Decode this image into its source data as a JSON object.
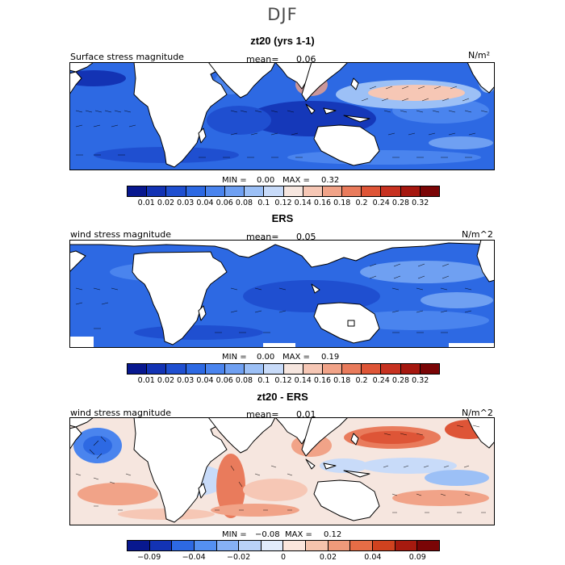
{
  "title": "DJF",
  "colors": {
    "land": "#ffffff",
    "coast": "#000000",
    "seq_scale": [
      "#08188f",
      "#1333b4",
      "#1f4fd0",
      "#2d69e3",
      "#4a84ee",
      "#6fa0f2",
      "#9cc0f6",
      "#c8dbf9",
      "#f6e6df",
      "#f6c7b5",
      "#f1a388",
      "#e97b5c",
      "#de5537",
      "#c73221",
      "#a5170f",
      "#7a0506"
    ],
    "div_scale": [
      "#08188f",
      "#1333b4",
      "#2d69e3",
      "#5490f1",
      "#86b1f5",
      "#b9d2f8",
      "#e1ecfb",
      "#fbe6dc",
      "#f5c4ad",
      "#ef9a7a",
      "#e66d46",
      "#d0421f",
      "#a71a0f",
      "#7a0506"
    ]
  },
  "panels": [
    {
      "title": "zt20 (yrs 1-1)",
      "field_label": "Surface stress magnitude",
      "mean_label": "mean=",
      "mean_value": "0.06",
      "units": "N/m²",
      "min_label": "MIN =",
      "min_value": "0.00",
      "max_label": "MAX =",
      "max_value": "0.32",
      "colorbar_ticks": [
        "0.01",
        "0.02",
        "0.03",
        "0.04",
        "0.06",
        "0.08",
        "0.1",
        "0.12",
        "0.14",
        "0.16",
        "0.18",
        "0.2",
        "0.24",
        "0.28",
        "0.32"
      ]
    },
    {
      "title": "ERS",
      "field_label": "wind stress magnitude",
      "mean_label": "mean=",
      "mean_value": "0.05",
      "units": "N/m^2",
      "min_label": "MIN =",
      "min_value": "0.00",
      "max_label": "MAX =",
      "max_value": "0.19",
      "colorbar_ticks": [
        "0.01",
        "0.02",
        "0.03",
        "0.04",
        "0.06",
        "0.08",
        "0.1",
        "0.12",
        "0.14",
        "0.16",
        "0.18",
        "0.2",
        "0.24",
        "0.28",
        "0.32"
      ]
    },
    {
      "title": "zt20 - ERS",
      "field_label": "wind stress magnitude",
      "mean_label": "mean=",
      "mean_value": "0.01",
      "units": "N/m^2",
      "min_label": "MIN =",
      "min_value": "−0.08",
      "max_label": "MAX =",
      "max_value": "0.12",
      "colorbar_ticks": [
        "−0.09",
        "−0.04",
        "−0.02",
        "0",
        "0.02",
        "0.04",
        "0.09"
      ]
    }
  ]
}
